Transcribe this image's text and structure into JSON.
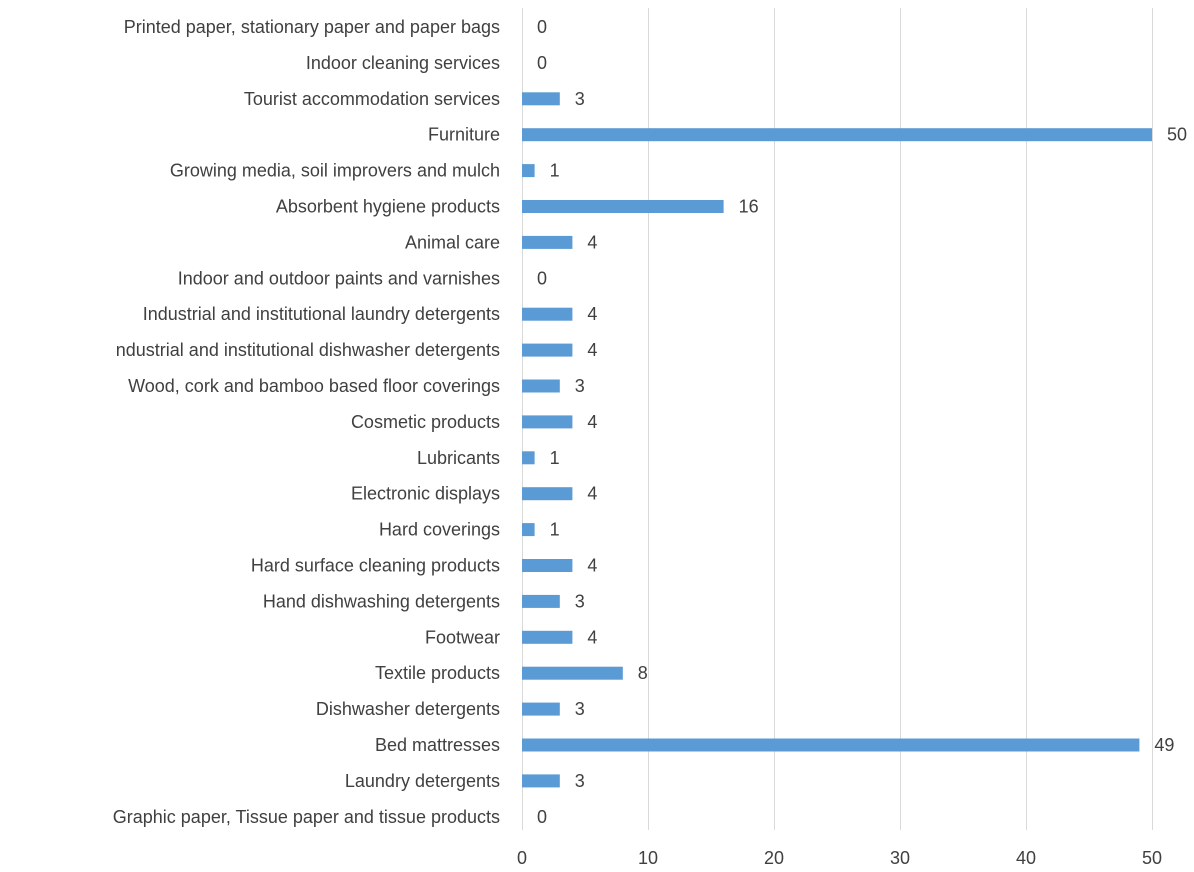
{
  "chart_data": {
    "type": "bar",
    "orientation": "horizontal",
    "title": "",
    "xlabel": "",
    "ylabel": "",
    "categories": [
      "Printed paper, stationary paper and paper bags",
      "Indoor cleaning services",
      "Tourist accommodation services",
      "Furniture",
      "Growing media, soil improvers and mulch",
      "Absorbent hygiene products",
      "Animal care",
      "Indoor and outdoor paints and varnishes",
      "Industrial and institutional laundry detergents",
      "ndustrial and institutional  dishwasher detergents",
      "Wood, cork and bamboo based floor coverings",
      "Cosmetic products",
      "Lubricants",
      "Electronic displays",
      "Hard coverings",
      "Hard surface cleaning products",
      "Hand dishwashing detergents",
      "Footwear",
      "Textile products",
      "Dishwasher detergents",
      "Bed mattresses",
      "Laundry detergents",
      "Graphic paper, Tissue paper and tissue products"
    ],
    "values": [
      0,
      0,
      3,
      50,
      1,
      16,
      4,
      0,
      4,
      4,
      3,
      4,
      1,
      4,
      1,
      4,
      3,
      4,
      8,
      3,
      49,
      3,
      0
    ],
    "value_labels": [
      "0",
      "0",
      "3",
      "50",
      "1",
      "16",
      "4",
      "0",
      "4",
      "4",
      "3",
      "4",
      "1",
      "4",
      "1",
      "4",
      "3",
      "4",
      "8",
      "3",
      "49",
      "3",
      "0"
    ],
    "xlim": [
      0,
      50
    ],
    "xticks": [
      0,
      10,
      20,
      30,
      40,
      50
    ],
    "xtick_labels": [
      "0",
      "10",
      "20",
      "30",
      "40",
      "50"
    ],
    "grid": "vertical",
    "legend": "none",
    "bar_color": "#5b9bd5",
    "text_color": "#404040",
    "grid_color": "#d9d9d9"
  }
}
